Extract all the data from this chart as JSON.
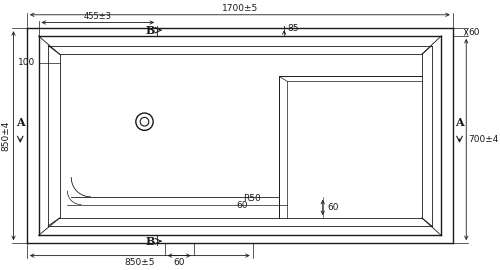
{
  "bg_color": "#ffffff",
  "line_color": "#1a1a1a",
  "annotations": {
    "top_width": "1700±5",
    "top_partial": "455±3",
    "top_85": "85",
    "left_height": "850±4",
    "left_100": "100",
    "right_60": "60",
    "right_700": "700±4",
    "bottom_850": "850±5",
    "bottom_60": "60",
    "radius_R50": "R50",
    "inner_60a": "60",
    "inner_60b": "60",
    "label_A": "A",
    "label_B": "B"
  }
}
